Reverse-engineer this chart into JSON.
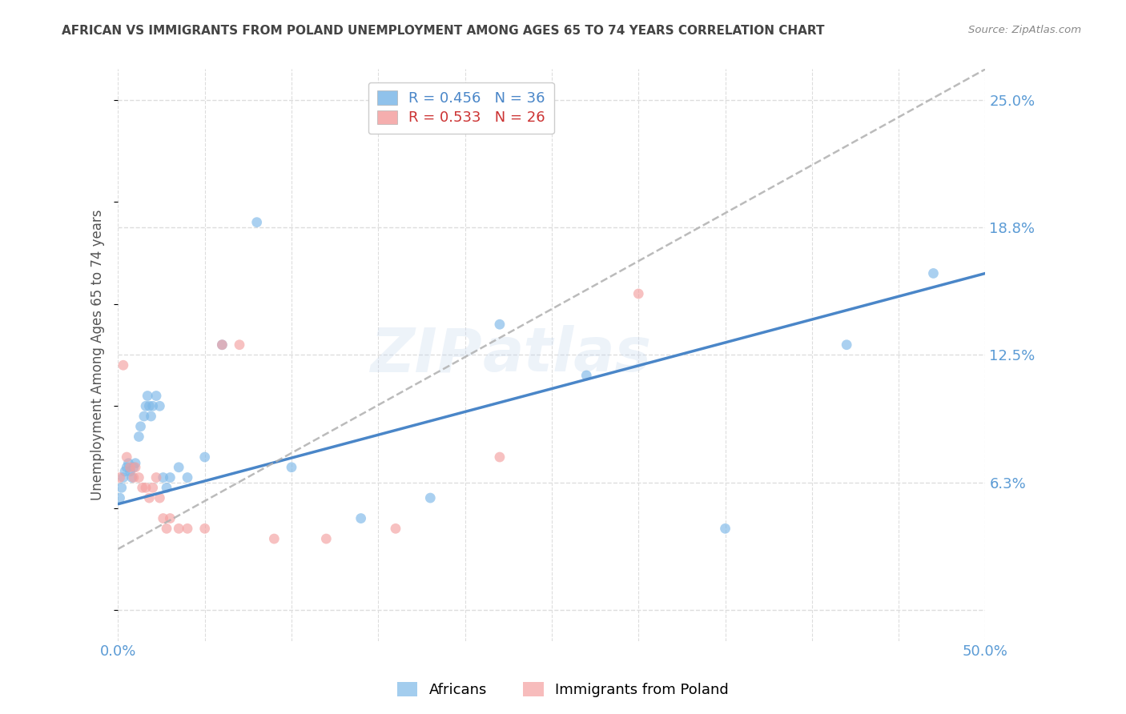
{
  "title": "AFRICAN VS IMMIGRANTS FROM POLAND UNEMPLOYMENT AMONG AGES 65 TO 74 YEARS CORRELATION CHART",
  "source": "Source: ZipAtlas.com",
  "ylabel": "Unemployment Among Ages 65 to 74 years",
  "xlim": [
    0.0,
    0.5
  ],
  "ylim": [
    -0.015,
    0.265
  ],
  "yticks": [
    0.0,
    0.0625,
    0.125,
    0.1875,
    0.25
  ],
  "ytick_labels": [
    "",
    "6.3%",
    "12.5%",
    "18.8%",
    "25.0%"
  ],
  "legend_african": "R = 0.456   N = 36",
  "legend_poland": "R = 0.533   N = 26",
  "legend_label_african": "Africans",
  "legend_label_poland": "Immigrants from Poland",
  "african_color": "#7db8e8",
  "poland_color": "#f4a0a0",
  "african_line_color": "#4a86c8",
  "poland_line_color": "#b0b0b0",
  "watermark_zip": "ZIP",
  "watermark_atlas": "atlas",
  "african_scatter_x": [
    0.001,
    0.002,
    0.003,
    0.004,
    0.005,
    0.006,
    0.007,
    0.008,
    0.009,
    0.01,
    0.012,
    0.013,
    0.015,
    0.016,
    0.017,
    0.018,
    0.019,
    0.02,
    0.022,
    0.024,
    0.026,
    0.028,
    0.03,
    0.035,
    0.04,
    0.05,
    0.06,
    0.08,
    0.1,
    0.14,
    0.18,
    0.22,
    0.27,
    0.35,
    0.42,
    0.47
  ],
  "african_scatter_y": [
    0.055,
    0.06,
    0.065,
    0.068,
    0.07,
    0.072,
    0.068,
    0.065,
    0.07,
    0.072,
    0.085,
    0.09,
    0.095,
    0.1,
    0.105,
    0.1,
    0.095,
    0.1,
    0.105,
    0.1,
    0.065,
    0.06,
    0.065,
    0.07,
    0.065,
    0.075,
    0.13,
    0.19,
    0.07,
    0.045,
    0.055,
    0.14,
    0.115,
    0.04,
    0.13,
    0.165
  ],
  "poland_scatter_x": [
    0.001,
    0.003,
    0.005,
    0.007,
    0.009,
    0.01,
    0.012,
    0.014,
    0.016,
    0.018,
    0.02,
    0.022,
    0.024,
    0.026,
    0.028,
    0.03,
    0.035,
    0.04,
    0.05,
    0.06,
    0.07,
    0.09,
    0.12,
    0.16,
    0.22,
    0.3
  ],
  "poland_scatter_y": [
    0.065,
    0.12,
    0.075,
    0.07,
    0.065,
    0.07,
    0.065,
    0.06,
    0.06,
    0.055,
    0.06,
    0.065,
    0.055,
    0.045,
    0.04,
    0.045,
    0.04,
    0.04,
    0.04,
    0.13,
    0.13,
    0.035,
    0.035,
    0.04,
    0.075,
    0.155
  ],
  "african_trend_x": [
    0.0,
    0.5
  ],
  "african_trend_y": [
    0.052,
    0.165
  ],
  "poland_trend_x": [
    0.0,
    0.5
  ],
  "poland_trend_y": [
    0.03,
    0.265
  ],
  "background_color": "#ffffff",
  "grid_color": "#dddddd",
  "title_color": "#444444",
  "axis_label_color": "#555555",
  "tick_color": "#5b9bd5",
  "marker_size": 85
}
